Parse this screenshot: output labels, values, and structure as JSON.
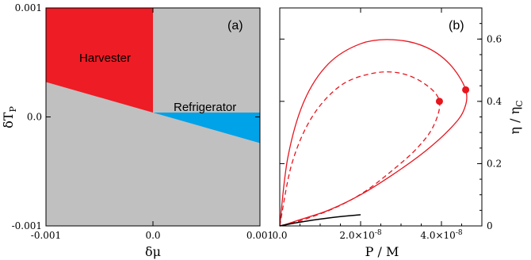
{
  "chart_data": [
    {
      "type": "area",
      "panel_label": "(a)",
      "xlabel": "δμ",
      "ylabel_base": "δT",
      "ylabel_sub": "P",
      "xlim": [
        -0.001,
        0.001
      ],
      "ylim": [
        -0.001,
        0.001
      ],
      "x_ticks": [
        -0.001,
        0.0,
        0.001
      ],
      "x_tick_labels": [
        "-0.001",
        "0.0",
        "0.001"
      ],
      "y_ticks": [
        -0.001,
        0.0,
        0.001
      ],
      "y_tick_labels": [
        "-0.001",
        "0.0",
        "0.001"
      ],
      "colors": {
        "background": "#c0c0c0",
        "harvester": "#ee1c25",
        "refrigerator": "#00a2e8"
      },
      "regions": [
        {
          "name": "Harvester",
          "points": [
            [
              -0.001,
              0.001
            ],
            [
              0.0,
              0.001
            ],
            [
              0.0,
              4e-05
            ],
            [
              -0.001,
              0.00032
            ]
          ]
        },
        {
          "name": "Refrigerator",
          "points": [
            [
              0.0,
              4e-05
            ],
            [
              0.001,
              4e-05
            ],
            [
              0.001,
              -0.00024
            ]
          ]
        }
      ]
    },
    {
      "type": "line",
      "panel_label": "(b)",
      "xlabel": "P / M",
      "ylabel_base": "η / η",
      "ylabel_sub": "C",
      "xlim": [
        0,
        5e-08
      ],
      "ylim": [
        0,
        0.7
      ],
      "x_ticks": [
        0,
        2e-08,
        4e-08
      ],
      "x_tick_labels": [
        {
          "base": "0.0",
          "exp": ""
        },
        {
          "base": "2.0×10",
          "exp": "-8"
        },
        {
          "base": "4.0×10",
          "exp": "-8"
        }
      ],
      "y_ticks": [
        0,
        0.2,
        0.4,
        0.6
      ],
      "y_tick_labels": [
        "0",
        "0.2",
        "0.4",
        "0.6"
      ],
      "colors": {
        "curve": "#e8141e",
        "small_curve": "#000000"
      },
      "series": [
        {
          "style": "solid",
          "color": "#e8141e",
          "x": [
            0,
            2e-09,
            6e-09,
            1.2e-08,
            2e-08,
            2.8e-08,
            3.6e-08,
            4.2e-08,
            4.6e-08,
            4.55e-08,
            4.2e-08,
            3.6e-08,
            2.8e-08,
            2e-08,
            1.2e-08,
            5e-09,
            1.5e-09,
            0
          ],
          "y": [
            0,
            0.22,
            0.4,
            0.52,
            0.585,
            0.598,
            0.575,
            0.52,
            0.437,
            0.37,
            0.31,
            0.24,
            0.165,
            0.1,
            0.05,
            0.02,
            0.005,
            0
          ]
        },
        {
          "style": "dashed",
          "color": "#e8141e",
          "x": [
            0,
            3e-09,
            8e-09,
            1.5e-08,
            2.3e-08,
            3e-08,
            3.6e-08,
            3.95e-08,
            3.8e-08,
            3.4e-08,
            2.8e-08,
            2.1e-08,
            1.4e-08,
            7e-09,
            2e-09,
            0
          ],
          "y": [
            0,
            0.2,
            0.35,
            0.45,
            0.49,
            0.49,
            0.455,
            0.4,
            0.32,
            0.25,
            0.18,
            0.11,
            0.06,
            0.025,
            0.005,
            0
          ]
        },
        {
          "style": "solid",
          "color": "#000000",
          "x": [
            0,
            5e-09,
            1e-08,
            1.5e-08,
            2e-08
          ],
          "y": [
            0,
            0.012,
            0.022,
            0.03,
            0.036
          ]
        }
      ],
      "markers": [
        {
          "x": 4.6e-08,
          "y": 0.437,
          "color": "#e8141e"
        },
        {
          "x": 3.95e-08,
          "y": 0.4,
          "color": "#e8141e"
        }
      ]
    }
  ]
}
